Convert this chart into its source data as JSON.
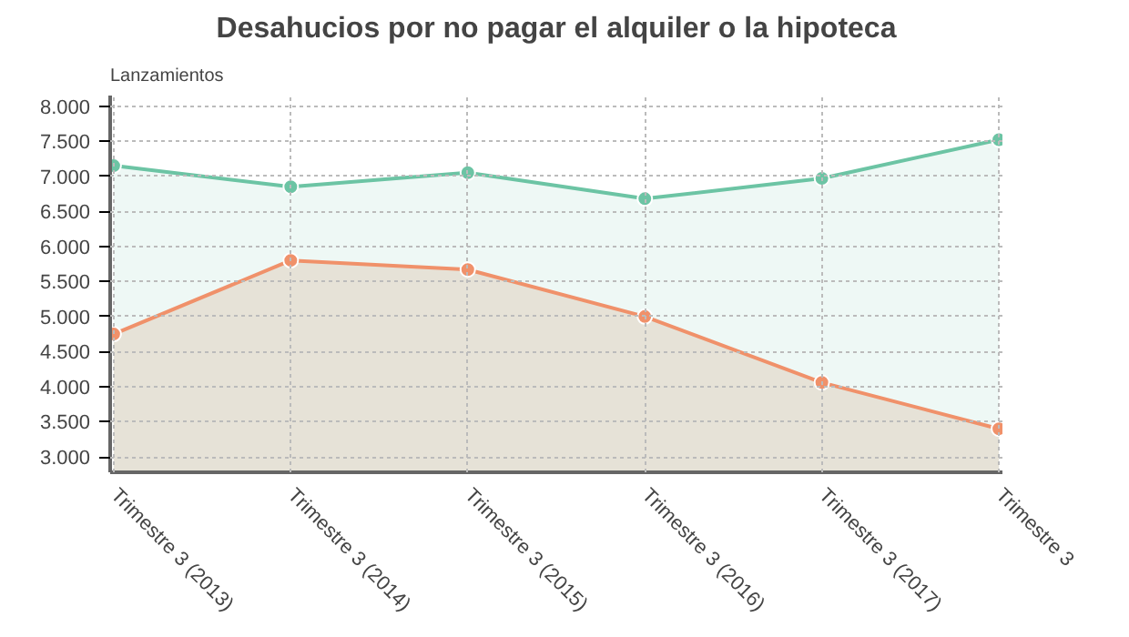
{
  "chart_data": {
    "type": "area",
    "title": "Desahucios por no pagar el alquiler o la hipoteca",
    "ylabel": "Lanzamientos",
    "categories": [
      "Trimestre 3 (2013)",
      "Trimestre 3 (2014)",
      "Trimestre 3 (2015)",
      "Trimestre 3 (2016)",
      "Trimestre 3 (2017)",
      "Trimestre 3"
    ],
    "series": [
      {
        "color": "#6cc4a4",
        "values": [
          7150,
          6850,
          7050,
          6680,
          6970,
          7520
        ]
      },
      {
        "color": "#f0916a",
        "values": [
          4750,
          5800,
          5670,
          5000,
          4060,
          3400
        ]
      }
    ],
    "ylim": [
      2780,
      8150
    ],
    "yticks": [
      {
        "value": 3000,
        "label": "3.000"
      },
      {
        "value": 3500,
        "label": "3.500"
      },
      {
        "value": 4000,
        "label": "4.000"
      },
      {
        "value": 4500,
        "label": "4.500"
      },
      {
        "value": 5000,
        "label": "5.000"
      },
      {
        "value": 5500,
        "label": "5.500"
      },
      {
        "value": 6000,
        "label": "6.000"
      },
      {
        "value": 6500,
        "label": "6.500"
      },
      {
        "value": 7000,
        "label": "7.000"
      },
      {
        "value": 7500,
        "label": "7.500"
      },
      {
        "value": 8000,
        "label": "8.000"
      }
    ],
    "grid": true,
    "marker": "circle",
    "line_style": "solid"
  }
}
